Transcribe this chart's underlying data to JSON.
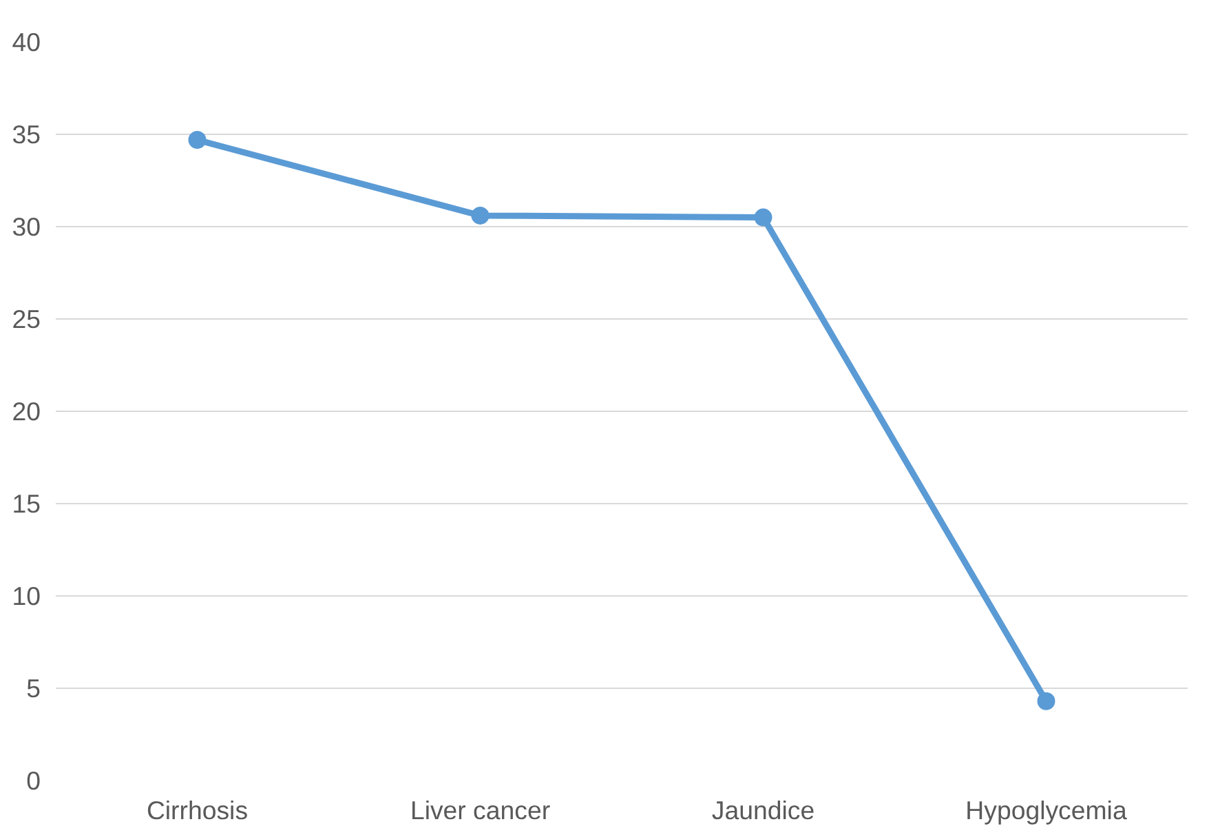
{
  "chart_data": {
    "type": "line",
    "categories": [
      "Cirrhosis",
      "Liver cancer",
      "Jaundice",
      "Hypoglycemia"
    ],
    "series": [
      {
        "color": "#5b9bd5",
        "values": [
          34.7,
          30.6,
          30.5,
          4.3
        ]
      }
    ],
    "ylim": [
      0,
      40
    ],
    "yticks": [
      0,
      5,
      10,
      15,
      20,
      25,
      30,
      35,
      40
    ],
    "grid": "y",
    "marker": "circle",
    "line_style": "solid"
  }
}
